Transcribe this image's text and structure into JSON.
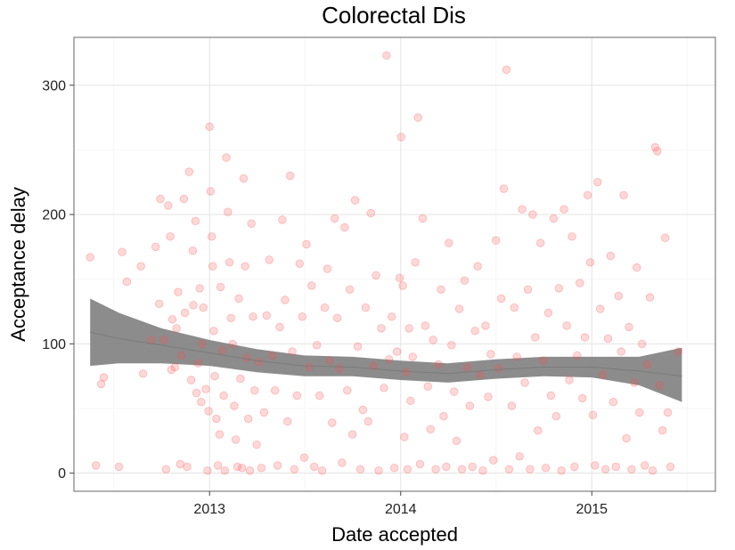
{
  "chart_data": {
    "type": "scatter",
    "title": "Colorectal Dis",
    "xlabel": "Date accepted",
    "ylabel": "Acceptance delay",
    "xlim": [
      "2012-04-17",
      "2015-08-25"
    ],
    "ylim": [
      -14,
      337
    ],
    "x_ticks": [
      {
        "label": "2013",
        "date": "2013-01-01"
      },
      {
        "label": "2014",
        "date": "2014-01-01"
      },
      {
        "label": "2015",
        "date": "2015-01-01"
      }
    ],
    "x_minor_ticks": [
      "2012-07-02",
      "2013-07-02",
      "2014-07-02",
      "2015-07-02"
    ],
    "y_ticks": [
      0,
      100,
      200,
      300
    ],
    "y_minor_ticks": [
      50,
      150,
      250
    ],
    "grid": true,
    "point_color": "#ff4d4d",
    "smooth_color": "#808080",
    "points": [
      [
        "2012-05-18",
        167
      ],
      [
        "2012-05-29",
        6
      ],
      [
        "2012-06-08",
        69
      ],
      [
        "2012-06-13",
        74
      ],
      [
        "2012-07-12",
        5
      ],
      [
        "2012-07-18",
        171
      ],
      [
        "2012-07-27",
        148
      ],
      [
        "2012-08-23",
        160
      ],
      [
        "2012-08-27",
        77
      ],
      [
        "2012-09-12",
        103
      ],
      [
        "2012-09-20",
        175
      ],
      [
        "2012-09-27",
        131
      ],
      [
        "2012-09-29",
        212
      ],
      [
        "2012-10-06",
        103
      ],
      [
        "2012-10-10",
        3
      ],
      [
        "2012-10-14",
        207
      ],
      [
        "2012-10-18",
        183
      ],
      [
        "2012-10-20",
        80
      ],
      [
        "2012-10-22",
        119
      ],
      [
        "2012-10-27",
        82
      ],
      [
        "2012-10-30",
        112
      ],
      [
        "2012-11-02",
        140
      ],
      [
        "2012-11-06",
        7
      ],
      [
        "2012-11-08",
        91
      ],
      [
        "2012-11-13",
        212
      ],
      [
        "2012-11-15",
        124
      ],
      [
        "2012-11-19",
        5
      ],
      [
        "2012-11-23",
        233
      ],
      [
        "2012-11-27",
        72
      ],
      [
        "2012-11-30",
        172
      ],
      [
        "2012-12-01",
        130
      ],
      [
        "2012-12-05",
        195
      ],
      [
        "2012-12-07",
        62
      ],
      [
        "2012-12-10",
        85
      ],
      [
        "2012-12-13",
        143
      ],
      [
        "2012-12-16",
        55
      ],
      [
        "2012-12-18",
        100
      ],
      [
        "2012-12-20",
        128
      ],
      [
        "2012-12-25",
        65
      ],
      [
        "2012-12-28",
        2
      ],
      [
        "2012-12-30",
        48
      ],
      [
        "2013-01-01",
        268
      ],
      [
        "2013-01-03",
        218
      ],
      [
        "2013-01-05",
        183
      ],
      [
        "2013-01-07",
        160
      ],
      [
        "2013-01-09",
        110
      ],
      [
        "2013-01-11",
        75
      ],
      [
        "2013-01-14",
        42
      ],
      [
        "2013-01-17",
        6
      ],
      [
        "2013-01-20",
        30
      ],
      [
        "2013-01-22",
        144
      ],
      [
        "2013-01-25",
        95
      ],
      [
        "2013-01-28",
        60
      ],
      [
        "2013-01-30",
        2
      ],
      [
        "2013-02-02",
        244
      ],
      [
        "2013-02-05",
        202
      ],
      [
        "2013-02-08",
        163
      ],
      [
        "2013-02-11",
        120
      ],
      [
        "2013-02-14",
        100
      ],
      [
        "2013-02-17",
        52
      ],
      [
        "2013-02-20",
        26
      ],
      [
        "2013-02-23",
        5
      ],
      [
        "2013-02-26",
        135
      ],
      [
        "2013-03-01",
        73
      ],
      [
        "2013-03-04",
        4
      ],
      [
        "2013-03-07",
        228
      ],
      [
        "2013-03-10",
        160
      ],
      [
        "2013-03-13",
        89
      ],
      [
        "2013-03-16",
        42
      ],
      [
        "2013-03-19",
        2
      ],
      [
        "2013-03-22",
        193
      ],
      [
        "2013-03-25",
        121
      ],
      [
        "2013-03-28",
        64
      ],
      [
        "2013-04-01",
        22
      ],
      [
        "2013-04-05",
        86
      ],
      [
        "2013-04-10",
        4
      ],
      [
        "2013-04-15",
        47
      ],
      [
        "2013-04-20",
        122
      ],
      [
        "2013-04-25",
        165
      ],
      [
        "2013-05-01",
        91
      ],
      [
        "2013-05-06",
        64
      ],
      [
        "2013-05-11",
        6
      ],
      [
        "2013-05-15",
        113
      ],
      [
        "2013-05-20",
        196
      ],
      [
        "2013-05-25",
        134
      ],
      [
        "2013-05-30",
        40
      ],
      [
        "2013-06-04",
        230
      ],
      [
        "2013-06-08",
        94
      ],
      [
        "2013-06-12",
        3
      ],
      [
        "2013-06-17",
        60
      ],
      [
        "2013-06-22",
        162
      ],
      [
        "2013-06-27",
        121
      ],
      [
        "2013-07-01",
        12
      ],
      [
        "2013-07-05",
        177
      ],
      [
        "2013-07-10",
        82
      ],
      [
        "2013-07-15",
        145
      ],
      [
        "2013-07-20",
        5
      ],
      [
        "2013-07-25",
        99
      ],
      [
        "2013-07-30",
        60
      ],
      [
        "2013-08-04",
        2
      ],
      [
        "2013-08-09",
        128
      ],
      [
        "2013-08-14",
        158
      ],
      [
        "2013-08-18",
        87
      ],
      [
        "2013-08-23",
        39
      ],
      [
        "2013-08-28",
        197
      ],
      [
        "2013-09-02",
        120
      ],
      [
        "2013-09-06",
        81
      ],
      [
        "2013-09-11",
        8
      ],
      [
        "2013-09-16",
        190
      ],
      [
        "2013-09-21",
        64
      ],
      [
        "2013-09-26",
        142
      ],
      [
        "2013-10-01",
        30
      ],
      [
        "2013-10-06",
        211
      ],
      [
        "2013-10-11",
        98
      ],
      [
        "2013-10-16",
        3
      ],
      [
        "2013-10-21",
        49
      ],
      [
        "2013-10-26",
        128
      ],
      [
        "2013-10-31",
        40
      ],
      [
        "2013-11-05",
        201
      ],
      [
        "2013-11-10",
        83
      ],
      [
        "2013-11-15",
        153
      ],
      [
        "2013-11-20",
        2
      ],
      [
        "2013-11-25",
        112
      ],
      [
        "2013-11-30",
        66
      ],
      [
        "2013-12-05",
        323
      ],
      [
        "2013-12-10",
        88
      ],
      [
        "2013-12-15",
        121
      ],
      [
        "2013-12-20",
        4
      ],
      [
        "2013-12-25",
        94
      ],
      [
        "2013-12-30",
        151
      ],
      [
        "2014-01-02",
        260
      ],
      [
        "2014-01-05",
        145
      ],
      [
        "2014-01-08",
        28
      ],
      [
        "2014-01-11",
        78
      ],
      [
        "2014-01-14",
        3
      ],
      [
        "2014-01-17",
        112
      ],
      [
        "2014-01-20",
        56
      ],
      [
        "2014-01-24",
        90
      ],
      [
        "2014-01-29",
        163
      ],
      [
        "2014-02-03",
        275
      ],
      [
        "2014-02-07",
        7
      ],
      [
        "2014-02-12",
        197
      ],
      [
        "2014-02-17",
        114
      ],
      [
        "2014-02-22",
        67
      ],
      [
        "2014-02-27",
        34
      ],
      [
        "2014-03-04",
        103
      ],
      [
        "2014-03-09",
        3
      ],
      [
        "2014-03-14",
        84
      ],
      [
        "2014-03-19",
        142
      ],
      [
        "2014-03-24",
        44
      ],
      [
        "2014-03-29",
        5
      ],
      [
        "2014-04-03",
        178
      ],
      [
        "2014-04-08",
        99
      ],
      [
        "2014-04-13",
        63
      ],
      [
        "2014-04-18",
        25
      ],
      [
        "2014-04-23",
        127
      ],
      [
        "2014-04-28",
        3
      ],
      [
        "2014-05-03",
        149
      ],
      [
        "2014-05-08",
        82
      ],
      [
        "2014-05-13",
        52
      ],
      [
        "2014-05-18",
        5
      ],
      [
        "2014-05-23",
        110
      ],
      [
        "2014-05-28",
        160
      ],
      [
        "2014-06-02",
        76
      ],
      [
        "2014-06-07",
        2
      ],
      [
        "2014-06-12",
        114
      ],
      [
        "2014-06-17",
        59
      ],
      [
        "2014-06-22",
        92
      ],
      [
        "2014-06-27",
        10
      ],
      [
        "2014-07-02",
        180
      ],
      [
        "2014-07-07",
        81
      ],
      [
        "2014-07-12",
        135
      ],
      [
        "2014-07-17",
        220
      ],
      [
        "2014-07-22",
        312
      ],
      [
        "2014-07-27",
        3
      ],
      [
        "2014-08-01",
        52
      ],
      [
        "2014-08-06",
        128
      ],
      [
        "2014-08-11",
        90
      ],
      [
        "2014-08-16",
        13
      ],
      [
        "2014-08-21",
        204
      ],
      [
        "2014-08-26",
        70
      ],
      [
        "2014-09-01",
        142
      ],
      [
        "2014-09-05",
        3
      ],
      [
        "2014-09-10",
        200
      ],
      [
        "2014-09-15",
        105
      ],
      [
        "2014-09-20",
        33
      ],
      [
        "2014-09-25",
        178
      ],
      [
        "2014-09-30",
        87
      ],
      [
        "2014-10-05",
        4
      ],
      [
        "2014-10-10",
        124
      ],
      [
        "2014-10-15",
        60
      ],
      [
        "2014-10-20",
        197
      ],
      [
        "2014-10-25",
        44
      ],
      [
        "2014-10-30",
        143
      ],
      [
        "2014-11-04",
        2
      ],
      [
        "2014-11-09",
        204
      ],
      [
        "2014-11-14",
        114
      ],
      [
        "2014-11-19",
        72
      ],
      [
        "2014-11-24",
        183
      ],
      [
        "2014-11-29",
        5
      ],
      [
        "2014-12-04",
        91
      ],
      [
        "2014-12-09",
        147
      ],
      [
        "2014-12-14",
        58
      ],
      [
        "2014-12-19",
        105
      ],
      [
        "2014-12-24",
        215
      ],
      [
        "2014-12-29",
        163
      ],
      [
        "2015-01-03",
        45
      ],
      [
        "2015-01-07",
        6
      ],
      [
        "2015-01-12",
        225
      ],
      [
        "2015-01-17",
        127
      ],
      [
        "2015-01-22",
        76
      ],
      [
        "2015-01-27",
        3
      ],
      [
        "2015-02-01",
        104
      ],
      [
        "2015-02-06",
        168
      ],
      [
        "2015-02-11",
        55
      ],
      [
        "2015-02-16",
        5
      ],
      [
        "2015-02-21",
        137
      ],
      [
        "2015-02-26",
        94
      ],
      [
        "2015-03-03",
        215
      ],
      [
        "2015-03-08",
        27
      ],
      [
        "2015-03-13",
        113
      ],
      [
        "2015-03-18",
        3
      ],
      [
        "2015-03-23",
        70
      ],
      [
        "2015-03-28",
        159
      ],
      [
        "2015-04-02",
        47
      ],
      [
        "2015-04-07",
        100
      ],
      [
        "2015-04-12",
        6
      ],
      [
        "2015-04-17",
        84
      ],
      [
        "2015-04-22",
        136
      ],
      [
        "2015-04-27",
        2
      ],
      [
        "2015-05-02",
        252
      ],
      [
        "2015-05-06",
        249
      ],
      [
        "2015-05-11",
        68
      ],
      [
        "2015-05-16",
        33
      ],
      [
        "2015-05-21",
        182
      ],
      [
        "2015-05-26",
        47
      ],
      [
        "2015-05-31",
        5
      ],
      [
        "2015-06-15",
        94
      ]
    ],
    "smooth": [
      {
        "x": "2012-05-18",
        "y": 109,
        "lo": 83,
        "hi": 135
      },
      {
        "x": "2012-07-12",
        "y": 104,
        "lo": 85,
        "hi": 124
      },
      {
        "x": "2012-10-01",
        "y": 99,
        "lo": 85,
        "hi": 112
      },
      {
        "x": "2013-01-01",
        "y": 93,
        "lo": 83,
        "hi": 103
      },
      {
        "x": "2013-04-01",
        "y": 87,
        "lo": 78,
        "hi": 96
      },
      {
        "x": "2013-07-01",
        "y": 83,
        "lo": 75,
        "hi": 91
      },
      {
        "x": "2013-10-01",
        "y": 82,
        "lo": 75,
        "hi": 90
      },
      {
        "x": "2014-01-01",
        "y": 79,
        "lo": 72,
        "hi": 87
      },
      {
        "x": "2014-04-01",
        "y": 77,
        "lo": 70,
        "hi": 85
      },
      {
        "x": "2014-07-01",
        "y": 80,
        "lo": 73,
        "hi": 88
      },
      {
        "x": "2014-10-01",
        "y": 82,
        "lo": 75,
        "hi": 90
      },
      {
        "x": "2015-01-01",
        "y": 82,
        "lo": 74,
        "hi": 90
      },
      {
        "x": "2015-04-01",
        "y": 79,
        "lo": 68,
        "hi": 90
      },
      {
        "x": "2015-06-22",
        "y": 75,
        "lo": 55,
        "hi": 97
      }
    ]
  }
}
